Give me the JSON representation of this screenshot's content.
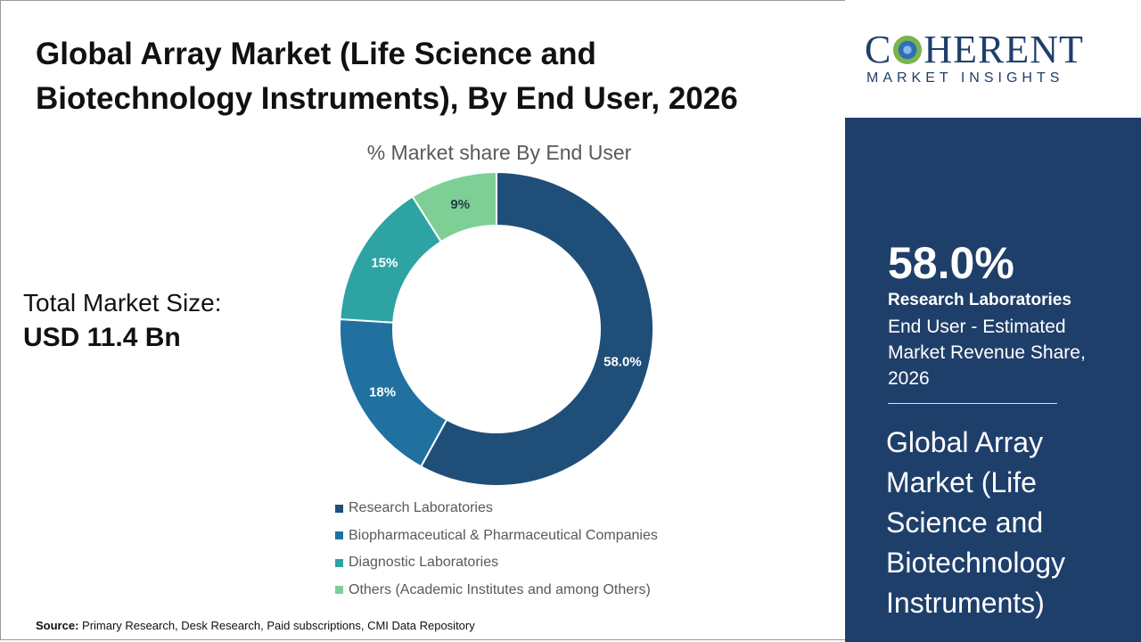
{
  "title": "Global Array Market (Life Science and Biotechnology Instruments), By End User, 2026",
  "total_market": {
    "label": "Total Market Size:",
    "value": "USD 11.4 Bn"
  },
  "source": {
    "label": "Source:",
    "text": "Primary Research, Desk Research, Paid subscriptions, CMI Data Repository"
  },
  "logo": {
    "word_start": "C",
    "word_end": "HERENT",
    "sub": "MARKET INSIGHTS"
  },
  "panel": {
    "big_value": "58.0%",
    "category": "Research Laboratories",
    "description": "End User - Estimated Market Revenue Share, 2026",
    "title": "Global Array Market (Life Science and Biotechnology Instruments)"
  },
  "colors": {
    "panel_bg": "#1f3f6b",
    "research": "#1f4e79",
    "biopharma": "#2071a0",
    "diagnostic": "#2ea3a3",
    "others": "#7dcf95"
  },
  "chart_data": {
    "type": "pie",
    "title": "% Market share By End User",
    "categories": [
      "Research Laboratories",
      "Biopharmaceutical & Pharmaceutical Companies",
      "Diagnostic Laboratories",
      "Others (Academic Institutes and among Others)"
    ],
    "values": [
      58.0,
      18,
      15,
      9
    ],
    "labels": [
      "58.0%",
      "18%",
      "15%",
      "9%"
    ],
    "colors": [
      "#1f4e79",
      "#2071a0",
      "#2ea3a3",
      "#7dcf95"
    ],
    "donut": true,
    "legend_position": "bottom"
  }
}
